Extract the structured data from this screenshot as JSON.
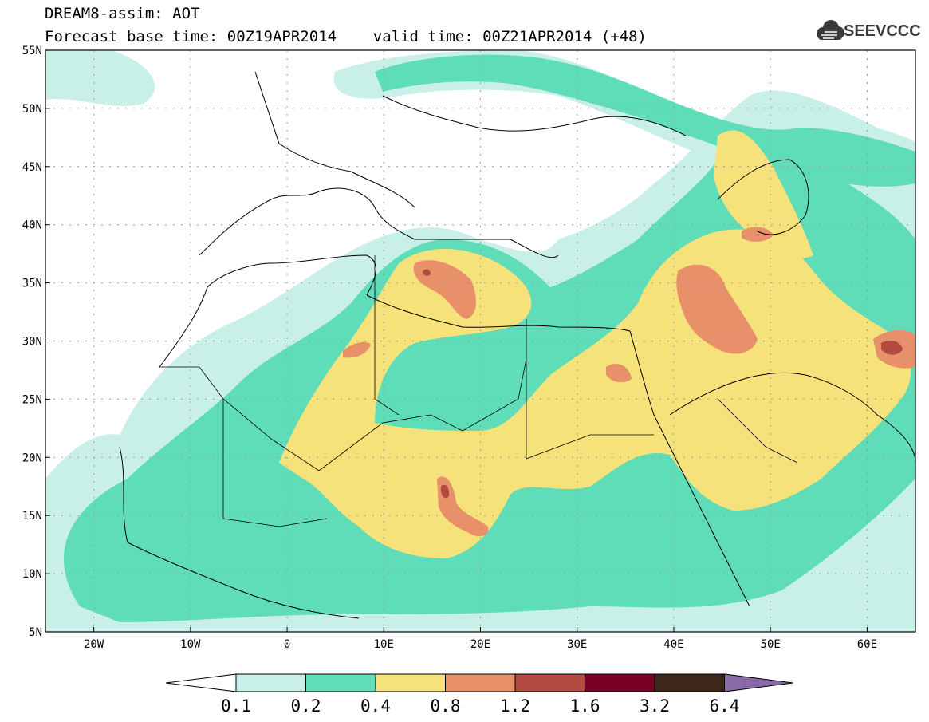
{
  "header": {
    "title_line1": "DREAM8-assim: AOT",
    "title_line2": "Forecast base time: 00Z19APR2014    valid time: 00Z21APR2014 (+48)",
    "logo_text": "SEEVCCC"
  },
  "map": {
    "lat_labels": [
      "55N",
      "50N",
      "45N",
      "40N",
      "35N",
      "30N",
      "25N",
      "20N",
      "15N",
      "10N",
      "5N"
    ],
    "lon_labels": [
      "20W",
      "10W",
      "0",
      "10E",
      "20E",
      "30E",
      "40E",
      "50E",
      "60E"
    ],
    "lat_range": [
      5,
      55
    ],
    "lon_range": [
      -25,
      65
    ],
    "grid": true
  },
  "colorbar": {
    "labels": [
      "0.1",
      "0.2",
      "0.4",
      "0.8",
      "1.2",
      "1.6",
      "3.2",
      "6.4"
    ],
    "colors": [
      "#ffffff",
      "#c8f0e8",
      "#5fdcb8",
      "#f5e27a",
      "#e8906a",
      "#b24a40",
      "#7a0025",
      "#3d2718",
      "#8a6aa8"
    ]
  }
}
